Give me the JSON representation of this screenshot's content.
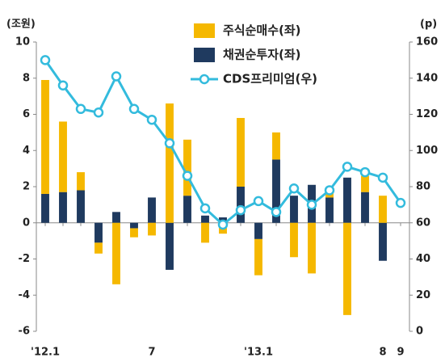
{
  "chart_data": {
    "type": "bar",
    "y_label": "(조원)",
    "y2_label": "(p)",
    "categories": [
      "'12.1",
      null,
      null,
      null,
      null,
      null,
      "7",
      null,
      null,
      null,
      null,
      null,
      "'13.1",
      null,
      null,
      null,
      null,
      null,
      null,
      "8",
      "9"
    ],
    "series": [
      {
        "name": "주식순매수(좌)",
        "color": "#f5b800",
        "values": [
          6.3,
          3.9,
          1.0,
          -0.6,
          -3.4,
          -0.5,
          -0.7,
          6.6,
          3.1,
          -1.1,
          -0.6,
          3.8,
          -2.0,
          1.5,
          -1.9,
          -2.8,
          0.3,
          -5.1,
          0.9,
          1.5,
          null
        ]
      },
      {
        "name": "채권순투자(좌)",
        "color": "#1f3a5f",
        "values": [
          1.6,
          1.7,
          1.8,
          -1.1,
          0.6,
          -0.3,
          1.4,
          -2.6,
          1.5,
          0.4,
          0.3,
          2.0,
          -0.9,
          3.5,
          1.5,
          2.1,
          1.4,
          2.5,
          1.7,
          -2.1,
          null
        ]
      },
      {
        "name": "CDS프리미엄(우)",
        "color": "#33bbdd",
        "type": "line",
        "axis": "y2",
        "values": [
          150,
          136,
          123,
          121,
          141,
          123,
          117,
          104,
          86,
          68,
          59,
          67,
          72,
          66,
          79,
          70,
          78,
          91,
          88,
          85,
          71
        ]
      }
    ],
    "ylim": [
      -6,
      10
    ],
    "yticks": [
      -6,
      -4,
      -2,
      0,
      2,
      4,
      6,
      8,
      10
    ],
    "y2lim": [
      0,
      160
    ],
    "y2ticks": [
      0,
      20,
      40,
      60,
      80,
      100,
      120,
      140,
      160
    ]
  }
}
